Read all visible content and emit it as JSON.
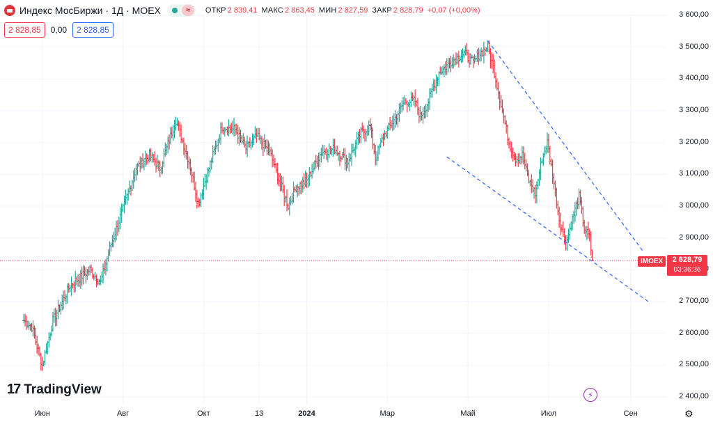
{
  "header": {
    "title": "Индекс МосБиржи · 1Д · MOEX",
    "wave_icon": "≈",
    "open_label": "ОТКР",
    "open_value": "2 839,41",
    "high_label": "МАКС",
    "high_value": "2 863,45",
    "low_label": "МИН",
    "low_value": "2 827,59",
    "close_label": "ЗАКР",
    "close_value": "2 828,79",
    "change": "+0,07 (+0,00%)"
  },
  "trade": {
    "sell": "2 828,85",
    "spread": "0,00",
    "buy": "2 828,85"
  },
  "price_tag": {
    "symbol": "IMOEX",
    "price": "2 828,79",
    "countdown": "03:36:36"
  },
  "branding": {
    "logo_text": "TradingView",
    "logo_mark": "17"
  },
  "colors": {
    "up": "#26a69a",
    "down": "#f23645",
    "trendline": "#2962ff",
    "accent": "#9c27b0"
  },
  "chart_data": {
    "type": "ohlc",
    "title": "Индекс МосБиржи · 1Д · MOEX",
    "ylim": [
      2400,
      3600
    ],
    "y_ticks": [
      "3 600,00",
      "3 500,00",
      "3 400,00",
      "3 300,00",
      "3 200,00",
      "3 100,00",
      "3 000,00",
      "2 900,00",
      "2 800,00",
      "2 700,00",
      "2 600,00",
      "2 500,00",
      "2 400,00"
    ],
    "y_tick_values": [
      3600,
      3500,
      3400,
      3300,
      3200,
      3100,
      3000,
      2900,
      2800,
      2700,
      2600,
      2500,
      2400
    ],
    "x_ticks": [
      {
        "label": "Июн",
        "day": 14
      },
      {
        "label": "Авг",
        "day": 75
      },
      {
        "label": "Окт",
        "day": 136
      },
      {
        "label": "13",
        "day": 178
      },
      {
        "label": "2024",
        "day": 214,
        "bold": true
      },
      {
        "label": "Мар",
        "day": 275
      },
      {
        "label": "Май",
        "day": 336
      },
      {
        "label": "Июл",
        "day": 397
      },
      {
        "label": "Сен",
        "day": 459
      }
    ],
    "x_range_days": [
      -18,
      485
    ],
    "close_keypoints": [
      [
        0,
        2640
      ],
      [
        6,
        2620
      ],
      [
        14,
        2500
      ],
      [
        22,
        2640
      ],
      [
        35,
        2750
      ],
      [
        50,
        2800
      ],
      [
        58,
        2760
      ],
      [
        66,
        2880
      ],
      [
        75,
        2990
      ],
      [
        85,
        3120
      ],
      [
        95,
        3160
      ],
      [
        103,
        3120
      ],
      [
        115,
        3270
      ],
      [
        125,
        3140
      ],
      [
        132,
        3010
      ],
      [
        140,
        3120
      ],
      [
        150,
        3250
      ],
      [
        160,
        3240
      ],
      [
        168,
        3180
      ],
      [
        176,
        3220
      ],
      [
        186,
        3170
      ],
      [
        194,
        3070
      ],
      [
        200,
        3000
      ],
      [
        206,
        3060
      ],
      [
        214,
        3080
      ],
      [
        225,
        3170
      ],
      [
        235,
        3180
      ],
      [
        245,
        3140
      ],
      [
        255,
        3230
      ],
      [
        262,
        3250
      ],
      [
        266,
        3150
      ],
      [
        272,
        3220
      ],
      [
        280,
        3270
      ],
      [
        288,
        3330
      ],
      [
        296,
        3330
      ],
      [
        300,
        3280
      ],
      [
        306,
        3330
      ],
      [
        314,
        3420
      ],
      [
        325,
        3460
      ],
      [
        333,
        3480
      ],
      [
        340,
        3450
      ],
      [
        345,
        3480
      ],
      [
        351,
        3500
      ],
      [
        356,
        3420
      ],
      [
        362,
        3300
      ],
      [
        367,
        3200
      ],
      [
        372,
        3150
      ],
      [
        377,
        3160
      ],
      [
        382,
        3080
      ],
      [
        387,
        3040
      ],
      [
        392,
        3150
      ],
      [
        396,
        3200
      ],
      [
        400,
        3100
      ],
      [
        405,
        2960
      ],
      [
        410,
        2880
      ],
      [
        415,
        2960
      ],
      [
        420,
        3030
      ],
      [
        424,
        2930
      ],
      [
        428,
        2900
      ],
      [
        430,
        2829
      ]
    ],
    "last_bar": {
      "open": 2839.41,
      "high": 2863.45,
      "low": 2827.59,
      "close": 2828.79
    },
    "trendlines": [
      {
        "from": [
          351,
          3520
        ],
        "to": [
          469,
          2855
        ]
      },
      {
        "from": [
          320,
          3155
        ],
        "to": [
          474,
          2695
        ]
      }
    ],
    "last_price": 2828.79
  }
}
